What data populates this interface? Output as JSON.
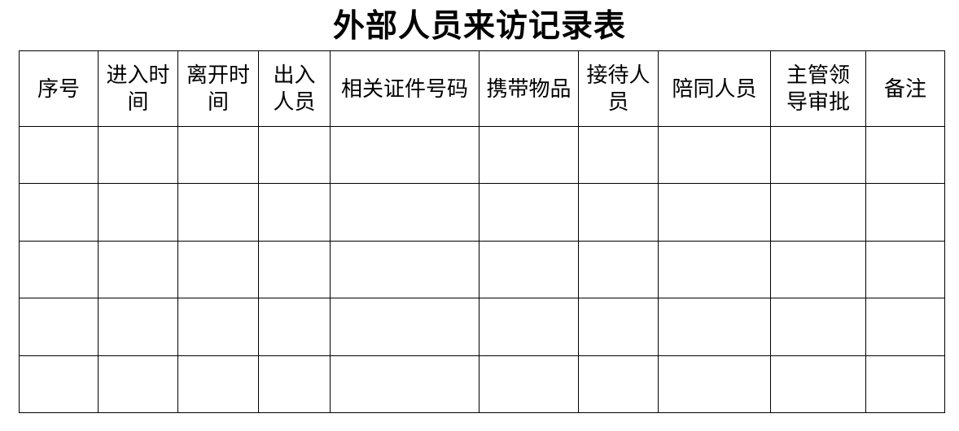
{
  "title": "外部人员来访记录表",
  "colors": {
    "text": "#000000",
    "border": "#000000",
    "background": "#ffffff"
  },
  "table": {
    "headers": [
      {
        "label": "序号"
      },
      {
        "label": "进入时\n间"
      },
      {
        "label": "离开时\n间"
      },
      {
        "label": "出入\n人员"
      },
      {
        "label": "相关证件号码"
      },
      {
        "label": "携带物品"
      },
      {
        "label": "接待人\n员"
      },
      {
        "label": "陪同人员"
      },
      {
        "label": "主管领\n导审批"
      },
      {
        "label": "备注"
      }
    ],
    "body_row_count": 5,
    "body_cell_value": ""
  }
}
